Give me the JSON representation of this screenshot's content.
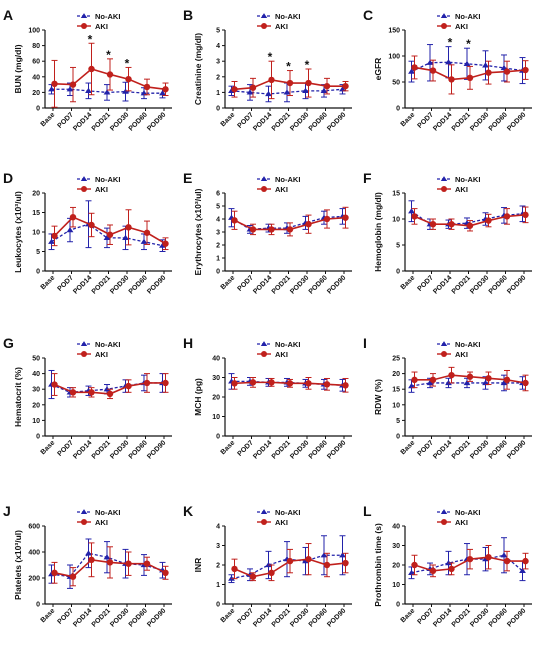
{
  "colors": {
    "no_aki": "#2222aa",
    "aki": "#c0201c",
    "axis": "#111111"
  },
  "legend": {
    "no_aki": "No-AKI",
    "aki": "AKI"
  },
  "categories": [
    "Base",
    "POD7",
    "POD14",
    "POD21",
    "POD30",
    "POD60",
    "POD90"
  ],
  "chart_data": [
    {
      "id": "A",
      "type": "line",
      "ylabel": "BUN (mg/dl)",
      "ylim": [
        0,
        100
      ],
      "yticks": [
        0,
        20,
        40,
        60,
        80,
        100
      ],
      "series": [
        {
          "name": "No-AKI",
          "values": [
            24,
            24,
            22,
            20,
            21,
            19,
            19
          ],
          "err": [
            6,
            8,
            10,
            10,
            12,
            7,
            6
          ]
        },
        {
          "name": "AKI",
          "values": [
            31,
            30,
            50,
            43,
            37,
            27,
            24
          ],
          "err": [
            30,
            22,
            33,
            20,
            15,
            10,
            8
          ]
        }
      ],
      "stars": [
        2,
        3,
        4
      ]
    },
    {
      "id": "B",
      "type": "line",
      "ylabel": "Creatinine (mg/dl)",
      "ylim": [
        0,
        5
      ],
      "yticks": [
        0,
        1,
        2,
        3,
        4,
        5
      ],
      "series": [
        {
          "name": "No-AKI",
          "values": [
            1.1,
            1.0,
            0.9,
            1.0,
            1.1,
            1.1,
            1.2
          ],
          "err": [
            0.3,
            0.5,
            0.5,
            0.6,
            0.5,
            0.4,
            0.3
          ]
        },
        {
          "name": "AKI",
          "values": [
            1.2,
            1.3,
            1.8,
            1.6,
            1.6,
            1.4,
            1.4
          ],
          "err": [
            0.5,
            0.6,
            1.2,
            0.8,
            0.9,
            0.5,
            0.3
          ]
        }
      ],
      "stars": [
        2,
        3,
        4
      ]
    },
    {
      "id": "C",
      "type": "line",
      "ylabel": "eGFR",
      "ylim": [
        0,
        150
      ],
      "yticks": [
        0,
        50,
        100,
        150
      ],
      "series": [
        {
          "name": "No-AKI",
          "values": [
            70,
            87,
            88,
            85,
            82,
            77,
            72
          ],
          "err": [
            20,
            35,
            30,
            30,
            28,
            25,
            25
          ]
        },
        {
          "name": "AKI",
          "values": [
            78,
            72,
            55,
            58,
            68,
            70,
            73
          ],
          "err": [
            22,
            20,
            28,
            22,
            22,
            20,
            18
          ]
        }
      ],
      "stars": [
        2,
        3
      ]
    },
    {
      "id": "D",
      "type": "line",
      "ylabel": "Leukocytes (x10³/ul)",
      "ylim": [
        0,
        20
      ],
      "yticks": [
        0,
        5,
        10,
        15,
        20
      ],
      "series": [
        {
          "name": "No-AKI",
          "values": [
            7.5,
            10.5,
            12.0,
            8.5,
            8.5,
            7.5,
            6.5
          ],
          "err": [
            2,
            3,
            6,
            2.5,
            3,
            2,
            1.5
          ]
        },
        {
          "name": "AKI",
          "values": [
            9.0,
            13.8,
            11.8,
            9.3,
            11.2,
            9.8,
            7.0
          ],
          "err": [
            2.5,
            2.5,
            3,
            2.5,
            4.5,
            3,
            1.5
          ]
        }
      ],
      "stars": []
    },
    {
      "id": "E",
      "type": "line",
      "ylabel": "Erythrocytes (x10³/ul)",
      "ylim": [
        0,
        6
      ],
      "yticks": [
        0,
        1,
        2,
        3,
        4,
        5,
        6
      ],
      "series": [
        {
          "name": "No-AKI",
          "values": [
            4.1,
            3.2,
            3.3,
            3.3,
            3.7,
            4.1,
            4.2
          ],
          "err": [
            0.7,
            0.3,
            0.3,
            0.4,
            0.5,
            0.5,
            0.6
          ]
        },
        {
          "name": "AKI",
          "values": [
            3.9,
            3.2,
            3.2,
            3.2,
            3.6,
            4.0,
            4.1
          ],
          "err": [
            0.7,
            0.4,
            0.4,
            0.5,
            0.7,
            0.7,
            0.8
          ]
        }
      ],
      "stars": []
    },
    {
      "id": "F",
      "type": "line",
      "ylabel": "Hemoglobin (mg/dl)",
      "ylim": [
        0,
        15
      ],
      "yticks": [
        0,
        5,
        10,
        15
      ],
      "series": [
        {
          "name": "No-AKI",
          "values": [
            11.5,
            9.0,
            9.0,
            9.2,
            10.0,
            10.7,
            11.0
          ],
          "err": [
            2,
            1,
            0.8,
            1,
            1.2,
            1.5,
            1.5
          ]
        },
        {
          "name": "AKI",
          "values": [
            10.5,
            9.0,
            9.0,
            8.7,
            9.7,
            10.5,
            10.8
          ],
          "err": [
            1.5,
            1,
            1,
            1,
            1.2,
            1.5,
            1.5
          ]
        }
      ],
      "stars": []
    },
    {
      "id": "G",
      "type": "line",
      "ylabel": "Hematocrit (%)",
      "ylim": [
        0,
        50
      ],
      "yticks": [
        0,
        10,
        20,
        30,
        40,
        50
      ],
      "series": [
        {
          "name": "No-AKI",
          "values": [
            33,
            28,
            29,
            30,
            32,
            34,
            34
          ],
          "err": [
            9,
            3,
            3,
            3,
            4,
            5,
            6
          ]
        },
        {
          "name": "AKI",
          "values": [
            33,
            28,
            28,
            27,
            32,
            34,
            34
          ],
          "err": [
            7,
            3,
            3,
            3,
            4,
            6,
            6
          ]
        }
      ],
      "stars": []
    },
    {
      "id": "H",
      "type": "line",
      "ylabel": "MCH (pg)",
      "ylim": [
        0,
        40
      ],
      "yticks": [
        0,
        10,
        20,
        30,
        40
      ],
      "series": [
        {
          "name": "No-AKI",
          "values": [
            28,
            28,
            27.5,
            27.5,
            27,
            26.5,
            26
          ],
          "err": [
            4,
            2,
            2,
            2,
            2,
            2.5,
            3
          ]
        },
        {
          "name": "AKI",
          "values": [
            27,
            27.5,
            27.5,
            27,
            27,
            26.5,
            26
          ],
          "err": [
            3,
            2.5,
            2,
            2,
            3,
            3,
            3.5
          ]
        }
      ],
      "stars": []
    },
    {
      "id": "I",
      "type": "line",
      "ylabel": "RDW (%)",
      "ylim": [
        0,
        25
      ],
      "yticks": [
        0,
        5,
        10,
        15,
        20,
        25
      ],
      "series": [
        {
          "name": "No-AKI",
          "values": [
            16,
            17,
            17,
            17,
            17,
            17,
            17
          ],
          "err": [
            2,
            1.5,
            1.5,
            1.5,
            2,
            2.5,
            2
          ]
        },
        {
          "name": "AKI",
          "values": [
            18,
            18,
            19.5,
            19,
            18.5,
            18,
            17
          ],
          "err": [
            2.5,
            2,
            2.5,
            1.5,
            2,
            3,
            2.5
          ]
        }
      ],
      "stars": []
    },
    {
      "id": "J",
      "type": "line",
      "ylabel": "Platelets (x10³/ul)",
      "ylim": [
        0,
        600
      ],
      "yticks": [
        0,
        200,
        400,
        600
      ],
      "series": [
        {
          "name": "No-AKI",
          "values": [
            230,
            210,
            390,
            360,
            310,
            300,
            260
          ],
          "err": [
            70,
            90,
            110,
            120,
            110,
            80,
            60
          ]
        },
        {
          "name": "AKI",
          "values": [
            240,
            210,
            340,
            320,
            310,
            310,
            240
          ],
          "err": [
            80,
            70,
            130,
            120,
            90,
            50,
            50
          ]
        }
      ],
      "stars": []
    },
    {
      "id": "K",
      "type": "line",
      "ylabel": "INR",
      "ylim": [
        0,
        4
      ],
      "yticks": [
        0,
        1,
        2,
        3,
        4
      ],
      "series": [
        {
          "name": "No-AKI",
          "values": [
            1.3,
            1.5,
            2.0,
            2.3,
            2.2,
            2.5,
            2.5
          ],
          "err": [
            0.2,
            0.3,
            0.7,
            0.9,
            0.7,
            1.0,
            1.0
          ]
        },
        {
          "name": "AKI",
          "values": [
            1.8,
            1.4,
            1.6,
            2.2,
            2.3,
            2.0,
            2.1
          ],
          "err": [
            0.5,
            0.2,
            0.4,
            0.6,
            0.8,
            0.6,
            0.5
          ]
        }
      ],
      "stars": []
    },
    {
      "id": "L",
      "type": "line",
      "ylabel": "Prothrombin time (s)",
      "ylim": [
        0,
        40
      ],
      "yticks": [
        0,
        10,
        20,
        30,
        40
      ],
      "series": [
        {
          "name": "No-AKI",
          "values": [
            16,
            18,
            21,
            23,
            23,
            25,
            17
          ],
          "err": [
            3,
            3,
            6,
            8,
            6,
            9,
            5
          ]
        },
        {
          "name": "AKI",
          "values": [
            20,
            17,
            18,
            23,
            24,
            22,
            22
          ],
          "err": [
            5,
            3,
            3,
            5,
            6,
            5,
            4
          ]
        }
      ],
      "stars": []
    }
  ]
}
